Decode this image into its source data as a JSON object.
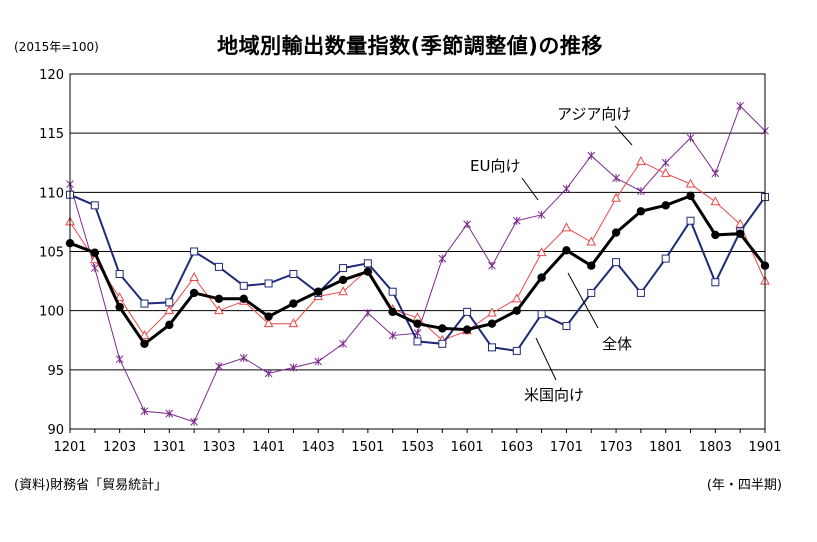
{
  "header": {
    "title": "地域別輸出数量指数(季節調整値)の推移",
    "unit": "(2015年=100)"
  },
  "footer": {
    "source": "(資料)財務省「貿易統計」",
    "xunit": "(年・四半期)"
  },
  "chart_data": {
    "type": "line",
    "title": "地域別輸出数量指数(季節調整値)の推移",
    "ylim": [
      90,
      120
    ],
    "yticks": [
      90,
      95,
      100,
      105,
      110,
      115,
      120
    ],
    "grid": true,
    "x": [
      "1201",
      "1202",
      "1203",
      "1204",
      "1301",
      "1302",
      "1303",
      "1304",
      "1401",
      "1402",
      "1403",
      "1404",
      "1501",
      "1502",
      "1503",
      "1504",
      "1601",
      "1602",
      "1603",
      "1604",
      "1701",
      "1702",
      "1703",
      "1704",
      "1801",
      "1802",
      "1803",
      "1804",
      "1901"
    ],
    "xtick_labels": [
      "1201",
      "1203",
      "1301",
      "1303",
      "1401",
      "1403",
      "1501",
      "1503",
      "1601",
      "1603",
      "1701",
      "1703",
      "1801",
      "1803",
      "1901"
    ],
    "series": [
      {
        "name": "全体",
        "color": "#000000",
        "marker": "dot",
        "values": [
          105.7,
          104.9,
          100.3,
          97.2,
          98.8,
          101.5,
          101.0,
          101.0,
          99.5,
          100.6,
          101.6,
          102.6,
          103.3,
          99.9,
          98.9,
          98.5,
          98.4,
          98.9,
          100.0,
          102.8,
          105.1,
          103.8,
          106.6,
          108.4,
          108.9,
          109.7,
          106.4,
          106.5,
          103.8
        ]
      },
      {
        "name": "米国向け",
        "color": "#1f2a78",
        "marker": "square",
        "values": [
          109.8,
          108.9,
          103.1,
          100.6,
          100.7,
          105.0,
          103.7,
          102.1,
          102.3,
          103.1,
          101.5,
          103.6,
          104.0,
          101.6,
          97.4,
          97.2,
          99.9,
          96.9,
          96.6,
          99.7,
          98.7,
          101.5,
          104.1,
          101.5,
          104.4,
          107.6,
          102.4,
          106.7,
          109.6
        ]
      },
      {
        "name": "EU向け",
        "color": "#7b2a8e",
        "marker": "star",
        "values": [
          110.7,
          103.6,
          95.9,
          91.5,
          91.3,
          90.6,
          95.3,
          96.0,
          94.7,
          95.2,
          95.7,
          97.2,
          99.8,
          97.9,
          98.1,
          104.4,
          107.3,
          103.8,
          107.6,
          108.1,
          110.3,
          113.1,
          111.2,
          110.1,
          112.5,
          114.6,
          111.6,
          117.3,
          115.2
        ]
      },
      {
        "name": "アジア向け",
        "color": "#e84848",
        "marker": "triangle",
        "values": [
          107.5,
          104.3,
          101.1,
          97.9,
          100.0,
          102.8,
          100.0,
          100.8,
          98.9,
          98.9,
          101.2,
          101.6,
          103.5,
          100.1,
          99.4,
          97.5,
          98.3,
          99.8,
          101.0,
          104.9,
          107.0,
          105.8,
          109.5,
          112.6,
          111.6,
          110.7,
          109.2,
          107.3,
          102.5
        ]
      }
    ],
    "annotations": [
      "アジア向け",
      "EU向け",
      "全体",
      "米国向け"
    ]
  }
}
